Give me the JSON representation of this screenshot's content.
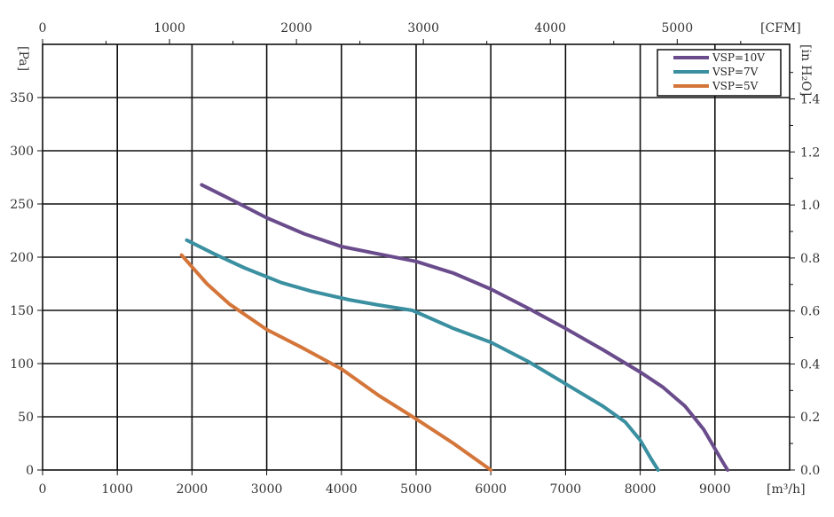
{
  "chart_data": {
    "type": "line",
    "x_unit_label": "[m³/h]",
    "y_unit_label": "[Pa]",
    "top_unit_label": "[CFM]",
    "right_unit_label": "[in H₂O]",
    "xlim": [
      0,
      10000
    ],
    "ylim": [
      0,
      400
    ],
    "top_xlim_cfm": [
      0,
      5885.7
    ],
    "right_ylim_inh2o": [
      0,
      1.606
    ],
    "x_ticks": [
      "0",
      "1000",
      "2000",
      "3000",
      "4000",
      "5000",
      "6000",
      "7000",
      "8000",
      "9000"
    ],
    "y_ticks": [
      "0",
      "50",
      "100",
      "150",
      "200",
      "250",
      "300",
      "350"
    ],
    "top_ticks": [
      "0",
      "1000",
      "2000",
      "3000",
      "4000",
      "5000"
    ],
    "right_ticks": [
      "0.0",
      "0.2",
      "0.4",
      "0.6",
      "0.8",
      "1.0",
      "1.2",
      "1.4"
    ],
    "grid": true,
    "legend_position": "top-right",
    "series": [
      {
        "name": "VSP=10V",
        "color": "#6a4c8c",
        "x": [
          2130,
          2500,
          3000,
          3500,
          4000,
          4500,
          5000,
          5500,
          6000,
          6500,
          7000,
          7500,
          8000,
          8300,
          8600,
          8850,
          9000,
          9100,
          9170
        ],
        "y": [
          268,
          255,
          237,
          222,
          210,
          203,
          196,
          185,
          170,
          152,
          133,
          113,
          92,
          78,
          60,
          38,
          20,
          8,
          0
        ]
      },
      {
        "name": "VSP=7V",
        "color": "#3a8fa0",
        "x": [
          1930,
          2300,
          2700,
          3200,
          3600,
          4100,
          4500,
          4950,
          5500,
          6000,
          6500,
          7000,
          7500,
          7800,
          8000,
          8150,
          8240
        ],
        "y": [
          216,
          203,
          190,
          176,
          168,
          160,
          155,
          150,
          133,
          120,
          102,
          81,
          60,
          45,
          28,
          10,
          0
        ]
      },
      {
        "name": "VSP=5V",
        "color": "#d4763a",
        "x": [
          1860,
          2200,
          2500,
          3000,
          3500,
          4000,
          4500,
          5000,
          5500,
          6000
        ],
        "y": [
          202,
          175,
          156,
          132,
          114,
          95,
          70,
          48,
          25,
          0
        ]
      }
    ]
  }
}
